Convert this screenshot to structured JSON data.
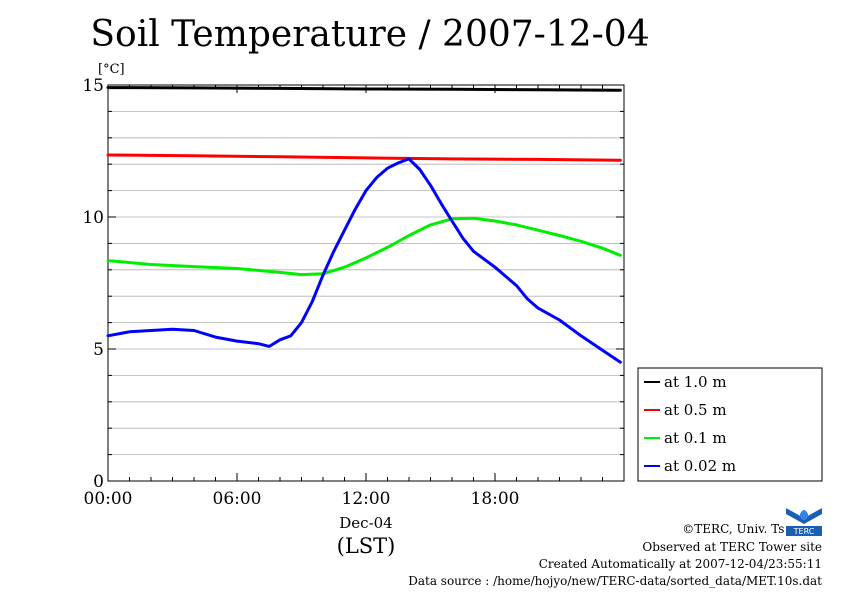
{
  "chart_data": {
    "type": "line",
    "title": "Soil Temperature / 2007-12-04",
    "ylabel": "[°C]",
    "xlabel": "(LST)",
    "x_date_label": "Dec-04",
    "ylim": [
      0,
      15
    ],
    "xlim": [
      "00:00",
      "24:00"
    ],
    "yticks": [
      0,
      5,
      10,
      15
    ],
    "xticks": [
      "00:00",
      "06:00",
      "12:00",
      "18:00"
    ],
    "grid": true,
    "legend_position": "lower-right outside",
    "series": [
      {
        "name": "at 1.0 m",
        "color": "#000000",
        "x": [
          "00:00",
          "04:00",
          "08:00",
          "12:00",
          "16:00",
          "20:00",
          "23:50"
        ],
        "y": [
          14.9,
          14.89,
          14.87,
          14.85,
          14.84,
          14.82,
          14.8
        ]
      },
      {
        "name": "at 0.5 m",
        "color": "#ff0000",
        "x": [
          "00:00",
          "04:00",
          "08:00",
          "12:00",
          "16:00",
          "20:00",
          "23:50"
        ],
        "y": [
          12.35,
          12.32,
          12.28,
          12.24,
          12.2,
          12.18,
          12.15
        ]
      },
      {
        "name": "at 0.1 m",
        "color": "#00ee00",
        "x": [
          "00:00",
          "02:00",
          "04:00",
          "06:00",
          "08:00",
          "09:00",
          "10:00",
          "11:00",
          "12:00",
          "13:00",
          "14:00",
          "15:00",
          "16:00",
          "17:00",
          "18:00",
          "19:00",
          "20:00",
          "21:00",
          "22:00",
          "23:00",
          "23:50"
        ],
        "y": [
          8.35,
          8.2,
          8.12,
          8.05,
          7.9,
          7.82,
          7.85,
          8.1,
          8.45,
          8.85,
          9.3,
          9.7,
          9.93,
          9.95,
          9.85,
          9.7,
          9.5,
          9.3,
          9.08,
          8.82,
          8.55
        ]
      },
      {
        "name": "at 0.02 m",
        "color": "#0000ff",
        "x": [
          "00:00",
          "01:00",
          "02:00",
          "03:00",
          "04:00",
          "05:00",
          "06:00",
          "07:00",
          "07:30",
          "08:00",
          "08:30",
          "09:00",
          "09:30",
          "10:00",
          "10:30",
          "11:00",
          "11:30",
          "12:00",
          "12:30",
          "13:00",
          "13:30",
          "14:00",
          "14:30",
          "15:00",
          "15:30",
          "16:00",
          "16:30",
          "17:00",
          "18:00",
          "19:00",
          "19:30",
          "20:00",
          "21:00",
          "22:00",
          "23:00",
          "23:50"
        ],
        "y": [
          5.5,
          5.65,
          5.7,
          5.75,
          5.7,
          5.45,
          5.3,
          5.2,
          5.1,
          5.35,
          5.5,
          6.0,
          6.8,
          7.8,
          8.7,
          9.5,
          10.3,
          11.0,
          11.5,
          11.85,
          12.05,
          12.2,
          11.8,
          11.2,
          10.5,
          9.85,
          9.2,
          8.7,
          8.1,
          7.4,
          6.9,
          6.55,
          6.1,
          5.5,
          4.95,
          4.5
        ]
      }
    ]
  },
  "credits": {
    "copyright": "©TERC, Univ. Tsukuba",
    "site": "Observed at TERC Tower site",
    "created": "Created Automatically at 2007-12-04/23:55:11",
    "source": "Data source : /home/hojyo/new/TERC-data/sorted_data/MET.10s.dat"
  },
  "logo": {
    "text": "TERC",
    "icon": "terc-logo-icon"
  }
}
